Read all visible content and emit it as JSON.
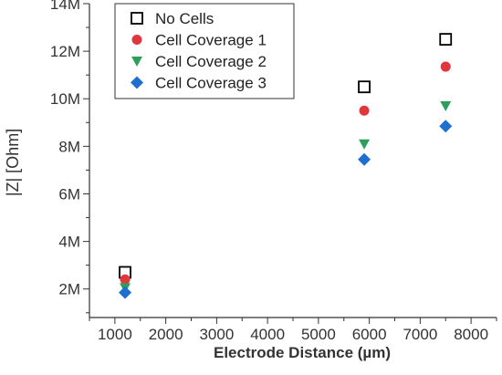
{
  "chart_data": {
    "type": "scatter",
    "xlabel": "Electrode Distance (µm)",
    "ylabel": "|Z| [Ohm]",
    "xlim": [
      500,
      8500
    ],
    "ylim": [
      800000,
      14000000
    ],
    "xticks": [
      1000,
      2000,
      3000,
      4000,
      5000,
      6000,
      7000,
      8000
    ],
    "xtick_labels": [
      "1000",
      "2000",
      "3000",
      "4000",
      "5000",
      "6000",
      "7000",
      "8000"
    ],
    "yticks": [
      2000000,
      4000000,
      6000000,
      8000000,
      10000000,
      12000000,
      14000000
    ],
    "ytick_labels": [
      "2M",
      "4M",
      "6M",
      "8M",
      "10M",
      "12M",
      "14M"
    ],
    "grid": false,
    "legend_position": "top-left",
    "series": [
      {
        "name": "No Cells",
        "marker": "open-square",
        "color": "#000000",
        "x": [
          1200,
          5900,
          7500
        ],
        "y": [
          2700000,
          10500000,
          12500000
        ]
      },
      {
        "name": "Cell Coverage 1",
        "marker": "circle",
        "color": "#e0373c",
        "x": [
          1200,
          5900,
          7500
        ],
        "y": [
          2400000,
          9500000,
          11350000
        ]
      },
      {
        "name": "Cell Coverage 2",
        "marker": "triangle-down",
        "color": "#2ca05a",
        "x": [
          1200,
          5900,
          7500
        ],
        "y": [
          2050000,
          8100000,
          9700000
        ]
      },
      {
        "name": "Cell Coverage 3",
        "marker": "diamond",
        "color": "#1f6fd0",
        "x": [
          1200,
          5900,
          7500
        ],
        "y": [
          1850000,
          7450000,
          8850000
        ]
      }
    ]
  }
}
